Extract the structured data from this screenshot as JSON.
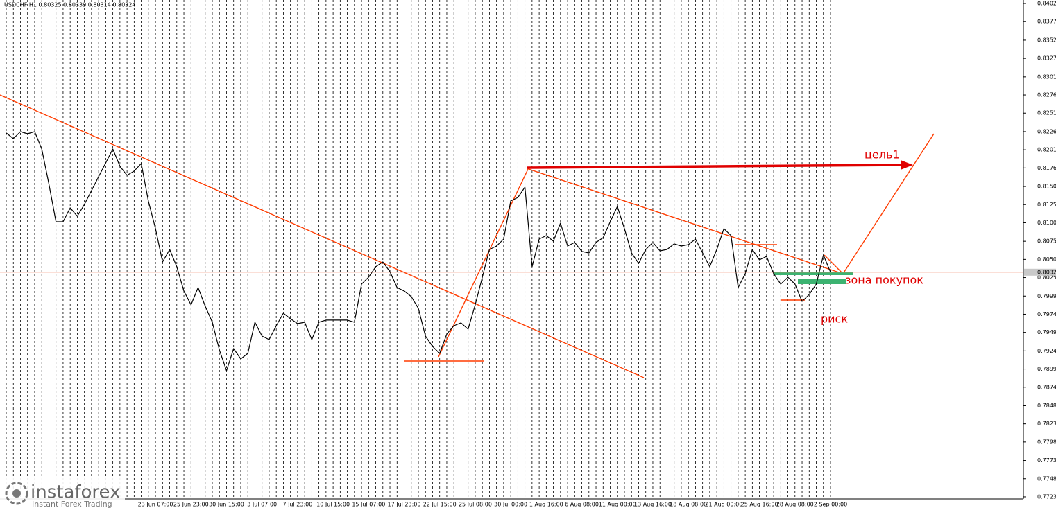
{
  "chart_data": {
    "type": "line",
    "title": "USDCHF,H1  0.80325 0.80339 0.80314 0.80324",
    "annotations": [
      "цель1",
      "зона покупок",
      "риск"
    ],
    "price_line": {
      "value": 0.80324,
      "label": "0.80324"
    },
    "grid": true,
    "categories": [
      null,
      null,
      null,
      null,
      null,
      null,
      null,
      null,
      null,
      null,
      null,
      null,
      null,
      null,
      null,
      null,
      null,
      null,
      null,
      null,
      null,
      "23 Jun 07:00",
      null,
      null,
      null,
      null,
      "25 Jun 23:00",
      null,
      null,
      null,
      null,
      "30 Jun 15:00",
      null,
      null,
      null,
      null,
      "3 Jul 07:00",
      null,
      null,
      null,
      null,
      "7 Jul 23:00",
      null,
      null,
      null,
      null,
      "10 Jul 15:00",
      null,
      null,
      null,
      null,
      "15 Jul 07:00",
      null,
      null,
      null,
      null,
      "17 Jul 23:00",
      null,
      null,
      null,
      null,
      "22 Jul 15:00",
      null,
      null,
      null,
      null,
      "25 Jul 08:00",
      null,
      null,
      null,
      null,
      "30 Jul 00:00",
      null,
      null,
      null,
      null,
      "1 Aug 16:00",
      null,
      null,
      null,
      null,
      "6 Aug 08:00",
      null,
      null,
      null,
      null,
      "11 Aug 00:00",
      null,
      null,
      null,
      null,
      "13 Aug 16:00",
      null,
      null,
      null,
      null,
      "18 Aug 08:00",
      null,
      null,
      null,
      null,
      "21 Aug 00:00",
      null,
      null,
      null,
      null,
      "25 Aug 16:00",
      null,
      null,
      null,
      null,
      "28 Aug 08:00",
      null,
      null,
      null,
      null,
      "2 Sep 00:00"
    ],
    "series": [
      {
        "name": "USDCHF",
        "color": "#000000",
        "values": [
          0.82241,
          0.82164,
          0.8226,
          0.82231,
          0.8226,
          0.82021,
          0.81544,
          0.81019,
          0.81019,
          0.8121,
          0.81095,
          0.81258,
          0.81448,
          0.81639,
          0.8183,
          0.82021,
          0.81782,
          0.81658,
          0.81716,
          0.81821,
          0.81305,
          0.80924,
          0.80465,
          0.80637,
          0.80399,
          0.80065,
          0.79874,
          0.80112,
          0.79855,
          0.79635,
          0.79253,
          0.78967,
          0.79272,
          0.79129,
          0.79206,
          0.79635,
          0.79444,
          0.79396,
          0.79587,
          0.79759,
          0.79683,
          0.79616,
          0.79635,
          0.79396,
          0.79635,
          0.79664,
          0.79664,
          0.79664,
          0.79664,
          0.79635,
          0.8016,
          0.80255,
          0.80399,
          0.80465,
          0.80332,
          0.80112,
          0.80065,
          0.79988,
          0.79826,
          0.79444,
          0.79301,
          0.79206,
          0.79473,
          0.79587,
          0.79626,
          0.7954,
          0.79874,
          0.80255,
          0.80637,
          0.80685,
          0.8078,
          0.81305,
          0.81353,
          0.81496,
          0.80399,
          0.8078,
          0.80828,
          0.80752,
          0.81,
          0.80685,
          0.80733,
          0.80609,
          0.80589,
          0.80733,
          0.80799,
          0.81019,
          0.81229,
          0.80924,
          0.80589,
          0.80446,
          0.80637,
          0.80733,
          0.80618,
          0.80637,
          0.80714,
          0.80685,
          0.80704,
          0.8078,
          0.80589,
          0.80399,
          0.80637,
          0.80924,
          0.80828,
          0.80112,
          0.80303,
          0.80637,
          0.80494,
          0.80542,
          0.80303,
          0.8016,
          0.80255,
          0.8016,
          0.79921,
          0.80017,
          0.8016,
          0.80561,
          0.80324
        ]
      }
    ],
    "ylim": [
      0.77201,
      0.84073
    ],
    "yticks": [
      {
        "value": 0.84025,
        "label": "0.84025"
      },
      {
        "value": 0.83775,
        "label": "0.83775"
      },
      {
        "value": 0.8352,
        "label": "0.83520"
      },
      {
        "value": 0.8327,
        "label": "0.83270"
      },
      {
        "value": 0.83015,
        "label": "0.83015"
      },
      {
        "value": 0.82765,
        "label": "0.82765"
      },
      {
        "value": 0.82515,
        "label": "0.82515"
      },
      {
        "value": 0.8226,
        "label": "0.82260"
      },
      {
        "value": 0.8201,
        "label": "0.82010"
      },
      {
        "value": 0.8176,
        "label": "0.81760"
      },
      {
        "value": 0.81505,
        "label": "0.81505"
      },
      {
        "value": 0.81255,
        "label": "0.81255"
      },
      {
        "value": 0.81005,
        "label": "0.81005"
      },
      {
        "value": 0.8075,
        "label": "0.80750"
      },
      {
        "value": 0.805,
        "label": "0.80500"
      },
      {
        "value": 0.8025,
        "label": "0.80250"
      },
      {
        "value": 0.79995,
        "label": "0.79995"
      },
      {
        "value": 0.79745,
        "label": "0.79745"
      },
      {
        "value": 0.79495,
        "label": "0.79495"
      },
      {
        "value": 0.7924,
        "label": "0.79240"
      },
      {
        "value": 0.7899,
        "label": "0.78990"
      },
      {
        "value": 0.7874,
        "label": "0.78740"
      },
      {
        "value": 0.78485,
        "label": "0.78485"
      },
      {
        "value": 0.78235,
        "label": "0.78235"
      },
      {
        "value": 0.77985,
        "label": "0.77985"
      },
      {
        "value": 0.7773,
        "label": "0.77730"
      },
      {
        "value": 0.7748,
        "label": "0.77480"
      },
      {
        "value": 0.7723,
        "label": "0.77230"
      }
    ]
  },
  "watermark": {
    "name": "instaforex",
    "slogan": "Instant Forex Trading"
  }
}
